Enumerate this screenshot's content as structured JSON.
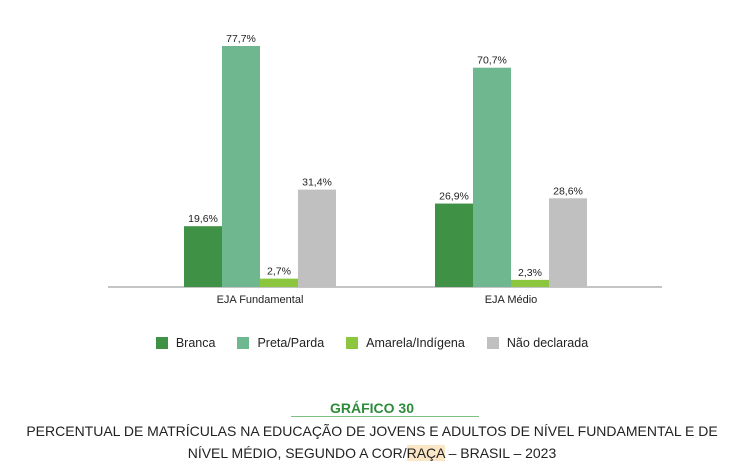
{
  "chart_data": {
    "type": "bar",
    "categories": [
      "EJA Fundamental",
      "EJA Médio"
    ],
    "series": [
      {
        "name": "Branca",
        "values": [
          19.6,
          26.9
        ],
        "labels": [
          "19,6%",
          "26,9%"
        ],
        "color": "#3f9146"
      },
      {
        "name": "Preta/Parda",
        "values": [
          77.7,
          70.7
        ],
        "labels": [
          "77,7%",
          "70,7%"
        ],
        "color": "#6fb88f"
      },
      {
        "name": "Amarela/Indígena",
        "values": [
          2.7,
          2.3
        ],
        "labels": [
          "2,7%",
          "2,3%"
        ],
        "color": "#8cc63f"
      },
      {
        "name": "Não declarada",
        "values": [
          31.4,
          28.6
        ],
        "labels": [
          "31,4%",
          "28,6%"
        ],
        "color": "#c0c0c0"
      }
    ],
    "ylim": [
      0,
      80
    ],
    "grid": false,
    "legend_position": "bottom"
  },
  "caption": {
    "label": "GRÁFICO 30",
    "line1": "PERCENTUAL DE MATRÍCULAS NA EDUCAÇÃO DE JOVENS E ADULTOS DE NÍVEL FUNDAMENTAL E DE",
    "line2_before": "NÍVEL MÉDIO, SEGUNDO A COR/",
    "line2_highlight": "RAÇA",
    "line2_after": " – BRASIL – 2023"
  }
}
